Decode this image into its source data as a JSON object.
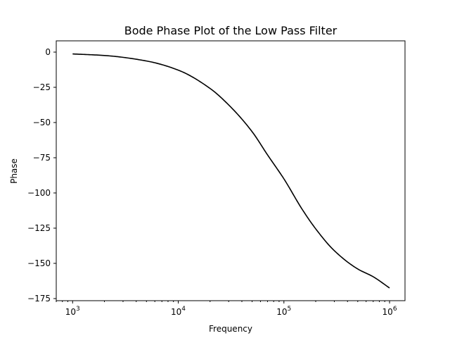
{
  "chart_data": {
    "type": "line",
    "title": "Bode Phase Plot of the Low Pass Filter",
    "xlabel": "Frequency",
    "ylabel": "Phase",
    "xscale": "log",
    "xlim": [
      700,
      1400000
    ],
    "ylim": [
      -176.5,
      8
    ],
    "grid": false,
    "line_color": "#000000",
    "x_ticks": [
      {
        "base": "10",
        "exp": "3",
        "value": 1000
      },
      {
        "base": "10",
        "exp": "4",
        "value": 10000
      },
      {
        "base": "10",
        "exp": "5",
        "value": 100000
      },
      {
        "base": "10",
        "exp": "6",
        "value": 1000000
      }
    ],
    "y_ticks": [
      {
        "label": "0",
        "value": 0
      },
      {
        "label": "−25",
        "value": -25
      },
      {
        "label": "−50",
        "value": -50
      },
      {
        "label": "−75",
        "value": -75
      },
      {
        "label": "−100",
        "value": -100
      },
      {
        "label": "−125",
        "value": -125
      },
      {
        "label": "−150",
        "value": -150
      },
      {
        "label": "−175",
        "value": -175
      }
    ],
    "series": [
      {
        "x": [
          1000,
          2000,
          5000,
          10000,
          20000,
          30000,
          50000,
          70000,
          100000,
          150000,
          200000,
          300000,
          500000,
          700000,
          1000000
        ],
        "y": [
          -1.3,
          -2.4,
          -6.3,
          -12.8,
          -25.8,
          -37.5,
          -56.5,
          -73.0,
          -90.0,
          -112.0,
          -125.5,
          -141.0,
          -154.0,
          -159.5,
          -167.5
        ]
      }
    ]
  }
}
